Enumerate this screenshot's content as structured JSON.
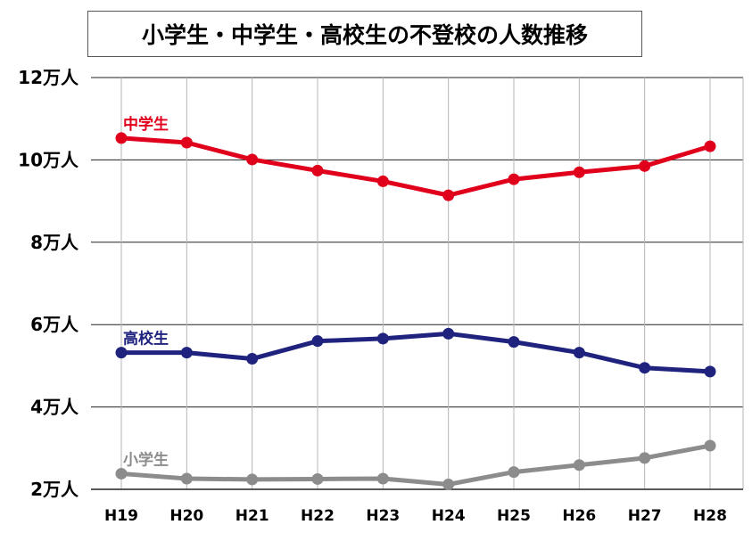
{
  "chart_data": {
    "type": "line",
    "title": "小学生・中学生・高校生の不登校の人数推移",
    "categories": [
      "H19",
      "H20",
      "H21",
      "H22",
      "H23",
      "H24",
      "H25",
      "H26",
      "H27",
      "H28"
    ],
    "y_ticks": [
      {
        "value": 2,
        "label": "2万人"
      },
      {
        "value": 4,
        "label": "4万人"
      },
      {
        "value": 6,
        "label": "6万人"
      },
      {
        "value": 8,
        "label": "8万人"
      },
      {
        "value": 10,
        "label": "10万人"
      },
      {
        "value": 12,
        "label": "12万人"
      }
    ],
    "ylim": [
      2,
      12
    ],
    "unit": "万人",
    "grid": true,
    "series": [
      {
        "name": "中学生",
        "color": "#e0001b",
        "values": [
          10.53,
          10.42,
          10.01,
          9.74,
          9.48,
          9.14,
          9.53,
          9.7,
          9.85,
          10.33
        ]
      },
      {
        "name": "高校生",
        "color": "#1f237e",
        "values": [
          5.32,
          5.32,
          5.17,
          5.6,
          5.66,
          5.78,
          5.58,
          5.32,
          4.95,
          4.86
        ]
      },
      {
        "name": "小学生",
        "color": "#8c8c8c",
        "values": [
          2.38,
          2.26,
          2.24,
          2.25,
          2.26,
          2.12,
          2.42,
          2.59,
          2.76,
          3.06
        ]
      }
    ]
  }
}
